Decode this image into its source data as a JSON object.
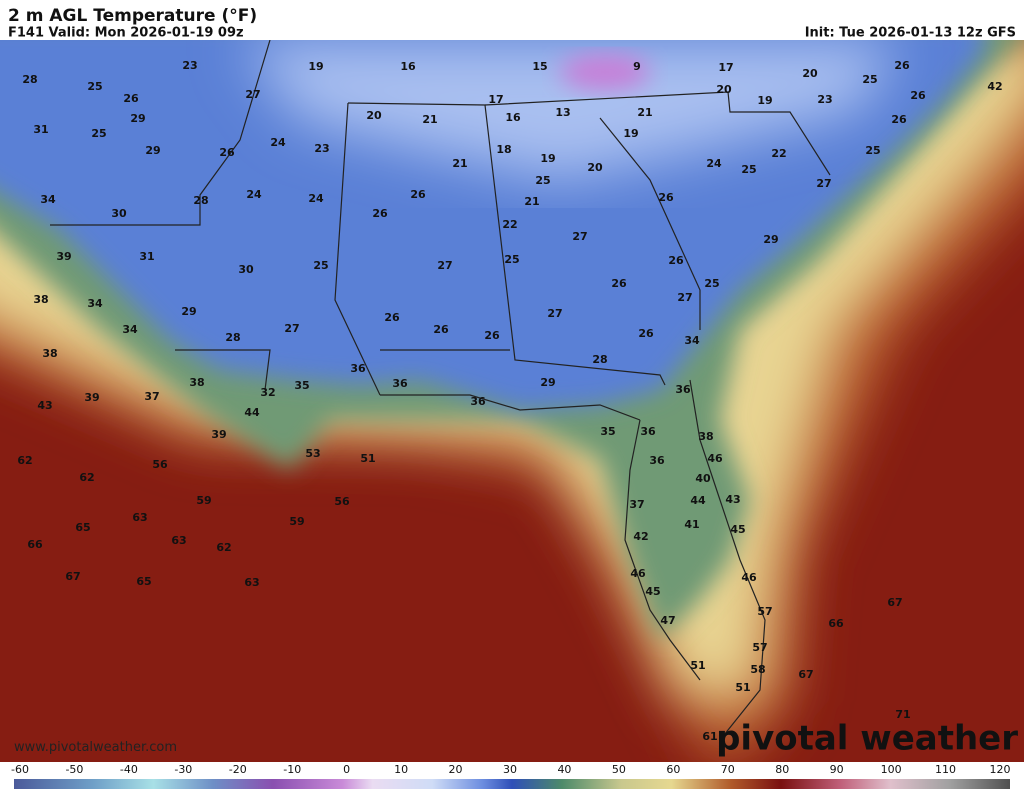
{
  "header": {
    "title": "2 m AGL Temperature (°F)",
    "valid": "F141 Valid: Mon 2026-01-19 09z",
    "init": "Init: Tue 2026-01-13 12z GFS"
  },
  "map": {
    "labels": [
      28,
      25,
      23,
      19,
      16,
      15,
      9,
      17,
      20,
      25,
      26,
      42,
      26,
      29,
      25,
      31,
      27,
      20,
      21,
      17,
      16,
      13,
      21,
      20,
      19,
      23,
      26,
      26,
      29,
      26,
      24,
      23,
      18,
      19,
      21,
      19,
      20,
      24,
      22,
      25,
      25,
      34,
      30,
      28,
      24,
      24,
      26,
      26,
      25,
      21,
      26,
      27,
      22,
      27,
      29,
      39,
      31,
      30,
      25,
      27,
      25,
      26,
      38,
      34,
      26,
      27,
      25,
      29,
      27,
      26,
      27,
      34,
      28,
      26,
      26,
      26,
      34,
      38,
      28,
      36,
      38,
      32,
      35,
      36,
      29,
      36,
      37,
      39,
      43,
      44,
      36,
      35,
      36,
      38,
      39,
      46,
      62,
      56,
      53,
      51,
      36,
      62,
      40,
      59,
      56,
      44,
      43,
      37,
      63,
      59,
      41,
      45,
      65,
      42,
      63,
      62,
      66,
      46,
      46,
      67,
      65,
      63,
      45,
      67,
      57,
      66,
      47,
      57,
      51,
      58,
      67,
      51,
      71,
      61
    ]
  },
  "footer": {
    "website": "www.pivotalweather.com",
    "logo": "pivotal weather"
  },
  "colorbar": {
    "ticks": [
      -60,
      -50,
      -40,
      -30,
      -20,
      -10,
      0,
      10,
      20,
      30,
      40,
      50,
      60,
      70,
      80,
      90,
      100,
      110,
      120
    ]
  }
}
